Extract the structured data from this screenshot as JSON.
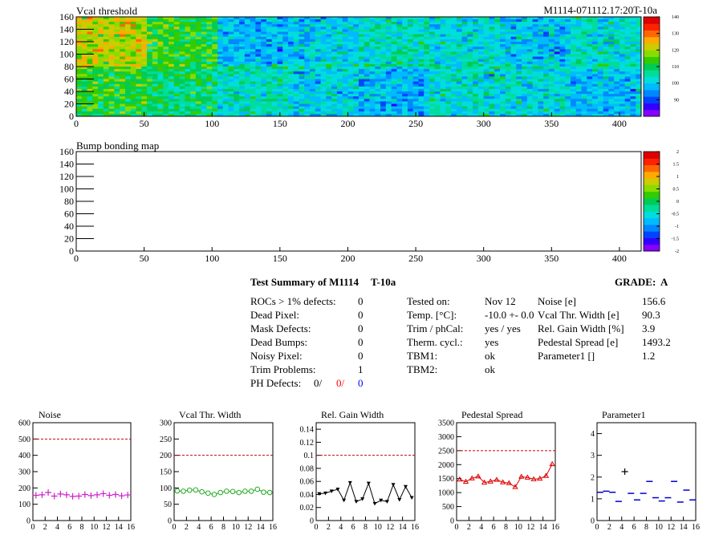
{
  "module_id": "M1114-071112.17:20T-10a",
  "colors": {
    "noise": "#cc22cc",
    "vcal_width": "#22aa22",
    "gain_width": "#000000",
    "pedestal": "#dd0000",
    "parameter1": "#0000cc",
    "limit_line": "#cc0000",
    "ph_red": "#ff0000",
    "ph_blue": "#0000ff"
  },
  "summary": {
    "title": "Test Summary of M1114",
    "temp_label": "T-10a",
    "grade_label": "GRADE:",
    "grade": "A",
    "left": [
      {
        "label": "ROCs > 1% defects:",
        "value": "0"
      },
      {
        "label": "Dead Pixel:",
        "value": "0"
      },
      {
        "label": "Mask Defects:",
        "value": "0"
      },
      {
        "label": "Dead Bumps:",
        "value": "0"
      },
      {
        "label": "Noisy Pixel:",
        "value": "0"
      },
      {
        "label": "Trim Problems:",
        "value": "1"
      }
    ],
    "ph_defects": {
      "label": "PH Defects:",
      "v1": "0/",
      "v2": "0/",
      "v3": "0"
    },
    "mid": [
      {
        "label": "Tested on:",
        "value": "Nov 12"
      },
      {
        "label": "Temp. [°C]:",
        "value": "-10.0 +- 0.0"
      },
      {
        "label": "Trim / phCal:",
        "value": "yes / yes"
      },
      {
        "label": "Therm. cycl.:",
        "value": "yes"
      },
      {
        "label": "TBM1:",
        "value": "ok"
      },
      {
        "label": "TBM2:",
        "value": "ok"
      }
    ],
    "right": [
      {
        "label": "Noise [e]",
        "value": "156.6"
      },
      {
        "label": "Vcal Thr. Width [e]",
        "value": "90.3"
      },
      {
        "label": "Rel. Gain Width [%]",
        "value": "3.9"
      },
      {
        "label": "Pedestal Spread [e]",
        "value": "1493.2"
      },
      {
        "label": "Parameter1 []",
        "value": "1.2"
      }
    ]
  },
  "chart_data": [
    {
      "type": "heatmap",
      "title": "Vcal threshold",
      "xlim": [
        0,
        416
      ],
      "ylim": [
        0,
        160
      ],
      "xticks": [
        0,
        50,
        100,
        150,
        200,
        250,
        300,
        350,
        400
      ],
      "yticks": [
        0,
        20,
        40,
        60,
        80,
        100,
        120,
        140,
        160
      ],
      "z_range": [
        80,
        140
      ],
      "z_ticks": [
        90,
        100,
        110,
        120,
        130,
        140
      ],
      "roc_means_top": [
        121,
        112,
        98,
        100,
        104,
        102,
        99,
        103
      ],
      "roc_means_bottom": [
        112,
        108,
        104,
        101,
        98,
        103,
        102,
        99
      ]
    },
    {
      "type": "heatmap",
      "title": "Bump bonding map",
      "xlim": [
        0,
        416
      ],
      "ylim": [
        0,
        160
      ],
      "xticks": [
        0,
        50,
        100,
        150,
        200,
        250,
        300,
        350,
        400
      ],
      "yticks": [
        0,
        20,
        40,
        60,
        80,
        100,
        120,
        140,
        160
      ],
      "z_range": [
        -2,
        2
      ],
      "z_ticks": [
        -2,
        -1.5,
        -1,
        -0.5,
        0,
        0.5,
        1,
        1.5,
        2
      ]
    },
    {
      "type": "scatter",
      "title": "Noise",
      "series_key": "noise",
      "marker": "plus",
      "xlim": [
        0,
        16
      ],
      "ylim": [
        0,
        600
      ],
      "xticks": [
        0,
        2,
        4,
        6,
        8,
        10,
        12,
        14,
        16
      ],
      "yticks": [
        0,
        100,
        200,
        300,
        400,
        500,
        600
      ],
      "limit": 500,
      "x": [
        0.5,
        1.5,
        2.5,
        3.5,
        4.5,
        5.5,
        6.5,
        7.5,
        8.5,
        9.5,
        10.5,
        11.5,
        12.5,
        13.5,
        14.5,
        15.5
      ],
      "y": [
        155,
        158,
        172,
        150,
        163,
        158,
        148,
        150,
        160,
        153,
        158,
        165,
        155,
        160,
        152,
        157
      ]
    },
    {
      "type": "line",
      "title": "Vcal Thr. Width",
      "series_key": "vcal_width",
      "marker": "circle",
      "xlim": [
        0,
        16
      ],
      "ylim": [
        0,
        300
      ],
      "xticks": [
        0,
        2,
        4,
        6,
        8,
        10,
        12,
        14,
        16
      ],
      "yticks": [
        0,
        50,
        100,
        150,
        200,
        250,
        300
      ],
      "limit": 200,
      "x": [
        0.5,
        1.5,
        2.5,
        3.5,
        4.5,
        5.5,
        6.5,
        7.5,
        8.5,
        9.5,
        10.5,
        11.5,
        12.5,
        13.5,
        14.5,
        15.5
      ],
      "y": [
        91,
        90,
        93,
        94,
        88,
        84,
        80,
        86,
        90,
        89,
        86,
        90,
        90,
        96,
        87,
        86
      ]
    },
    {
      "type": "line",
      "title": "Rel. Gain Width",
      "series_key": "gain_width",
      "marker": "triangle-down",
      "xlim": [
        0,
        16
      ],
      "ylim": [
        0,
        0.15
      ],
      "xticks": [
        0,
        2,
        4,
        6,
        8,
        10,
        12,
        14,
        16
      ],
      "yticks": [
        0,
        0.02,
        0.04,
        0.06,
        0.08,
        0.1,
        0.12,
        0.14
      ],
      "limit": 0.1,
      "x": [
        0.5,
        1.5,
        2.5,
        3.5,
        4.5,
        5.5,
        6.5,
        7.5,
        8.5,
        9.5,
        10.5,
        11.5,
        12.5,
        13.5,
        14.5,
        15.5
      ],
      "y": [
        0.041,
        0.042,
        0.045,
        0.048,
        0.031,
        0.058,
        0.029,
        0.033,
        0.057,
        0.026,
        0.031,
        0.029,
        0.055,
        0.032,
        0.052,
        0.035
      ]
    },
    {
      "type": "line",
      "title": "Pedestal Spread",
      "series_key": "pedestal",
      "marker": "triangle-up",
      "xlim": [
        0,
        16
      ],
      "ylim": [
        0,
        3500
      ],
      "xticks": [
        0,
        2,
        4,
        6,
        8,
        10,
        12,
        14,
        16
      ],
      "yticks": [
        0,
        500,
        1000,
        1500,
        2000,
        2500,
        3000,
        3500
      ],
      "limit": 2500,
      "x": [
        0.5,
        1.5,
        2.5,
        3.5,
        4.5,
        5.5,
        6.5,
        7.5,
        8.5,
        9.5,
        10.5,
        11.5,
        12.5,
        13.5,
        14.5,
        15.5
      ],
      "y": [
        1470,
        1390,
        1510,
        1580,
        1360,
        1400,
        1460,
        1370,
        1340,
        1200,
        1570,
        1540,
        1480,
        1500,
        1600,
        2020
      ]
    },
    {
      "type": "scatter",
      "title": "Parameter1",
      "series_key": "parameter1",
      "marker": "hline",
      "xlim": [
        0,
        16
      ],
      "ylim": [
        0,
        4.5
      ],
      "xticks": [
        0,
        2,
        4,
        6,
        8,
        10,
        12,
        14,
        16
      ],
      "yticks": [
        0,
        1,
        2,
        3,
        4
      ],
      "x": [
        0.5,
        1.5,
        2.5,
        3.5,
        5.5,
        6.5,
        7.5,
        8.5,
        9.5,
        10.5,
        11.5,
        12.5,
        13.5,
        14.5,
        15.5
      ],
      "y": [
        1.3,
        1.35,
        1.3,
        0.88,
        1.25,
        0.95,
        1.25,
        1.8,
        1.05,
        0.9,
        1.05,
        1.8,
        0.85,
        1.4,
        0.95
      ],
      "outlier": {
        "x": 4.5,
        "y": 2.25
      }
    }
  ]
}
